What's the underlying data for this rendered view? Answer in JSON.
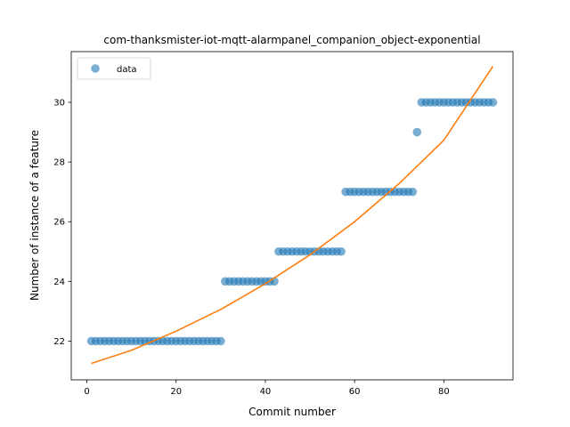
{
  "chart_data": {
    "type": "scatter",
    "title": "com-thanksmister-iot-mqtt-alarmpanel_companion_object-exponential",
    "xlabel": "Commit number",
    "ylabel": "Number of instance of a feature",
    "xlim": [
      -3.5,
      95.5
    ],
    "ylim": [
      20.7,
      31.7
    ],
    "xticks": [
      0,
      20,
      40,
      60,
      80
    ],
    "yticks": [
      22,
      24,
      26,
      28,
      30
    ],
    "grid": false,
    "legend_position": "upper left",
    "series": [
      {
        "name": "data",
        "kind": "points",
        "color": "#1f77b4",
        "segments": [
          {
            "x_from": 1,
            "x_to": 30,
            "y": 22
          },
          {
            "x_from": 31,
            "x_to": 42,
            "y": 24
          },
          {
            "x_from": 43,
            "x_to": 57,
            "y": 25
          },
          {
            "x_from": 58,
            "x_to": 73,
            "y": 27
          },
          {
            "x_from": 74,
            "x_to": 74,
            "y": 29
          },
          {
            "x_from": 75,
            "x_to": 91,
            "y": 30
          }
        ]
      },
      {
        "kind": "fit-line",
        "color": "#ff7f0e",
        "x": [
          1,
          10,
          20,
          30,
          40,
          50,
          60,
          70,
          80,
          91
        ],
        "y": [
          21.25,
          21.69,
          22.33,
          23.06,
          23.92,
          24.89,
          26.0,
          27.28,
          28.73,
          31.21
        ]
      }
    ]
  }
}
